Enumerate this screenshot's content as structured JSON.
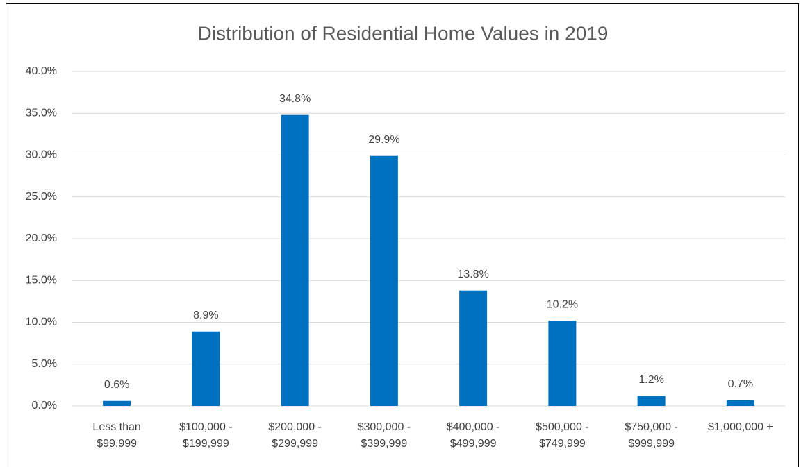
{
  "chart_data": {
    "type": "bar",
    "title": "Distribution of Residential Home Values in 2019",
    "categories": [
      [
        "Less than",
        "$99,999"
      ],
      [
        "$100,000 -",
        "$199,999"
      ],
      [
        "$200,000 -",
        "$299,999"
      ],
      [
        "$300,000 -",
        "$399,999"
      ],
      [
        "$400,000 -",
        "$499,999"
      ],
      [
        "$500,000 -",
        "$749,999"
      ],
      [
        "$750,000 -",
        "$999,999"
      ],
      [
        "$1,000,000 +"
      ]
    ],
    "values": [
      0.6,
      8.9,
      34.8,
      29.9,
      13.8,
      10.2,
      1.2,
      0.7
    ],
    "value_labels": [
      "0.6%",
      "8.9%",
      "34.8%",
      "29.9%",
      "13.8%",
      "10.2%",
      "1.2%",
      "0.7%"
    ],
    "color": "#0070c0",
    "ylim": [
      0,
      40
    ],
    "yticks": [
      {
        "value": 0,
        "label": "0.0%"
      },
      {
        "value": 5,
        "label": "5.0%"
      },
      {
        "value": 10,
        "label": "10.0%"
      },
      {
        "value": 15,
        "label": "15.0%"
      },
      {
        "value": 20,
        "label": "20.0%"
      },
      {
        "value": 25,
        "label": "25.0%"
      },
      {
        "value": 30,
        "label": "30.0%"
      },
      {
        "value": 35,
        "label": "35.0%"
      },
      {
        "value": 40,
        "label": "40.0%"
      }
    ],
    "grid": true
  }
}
